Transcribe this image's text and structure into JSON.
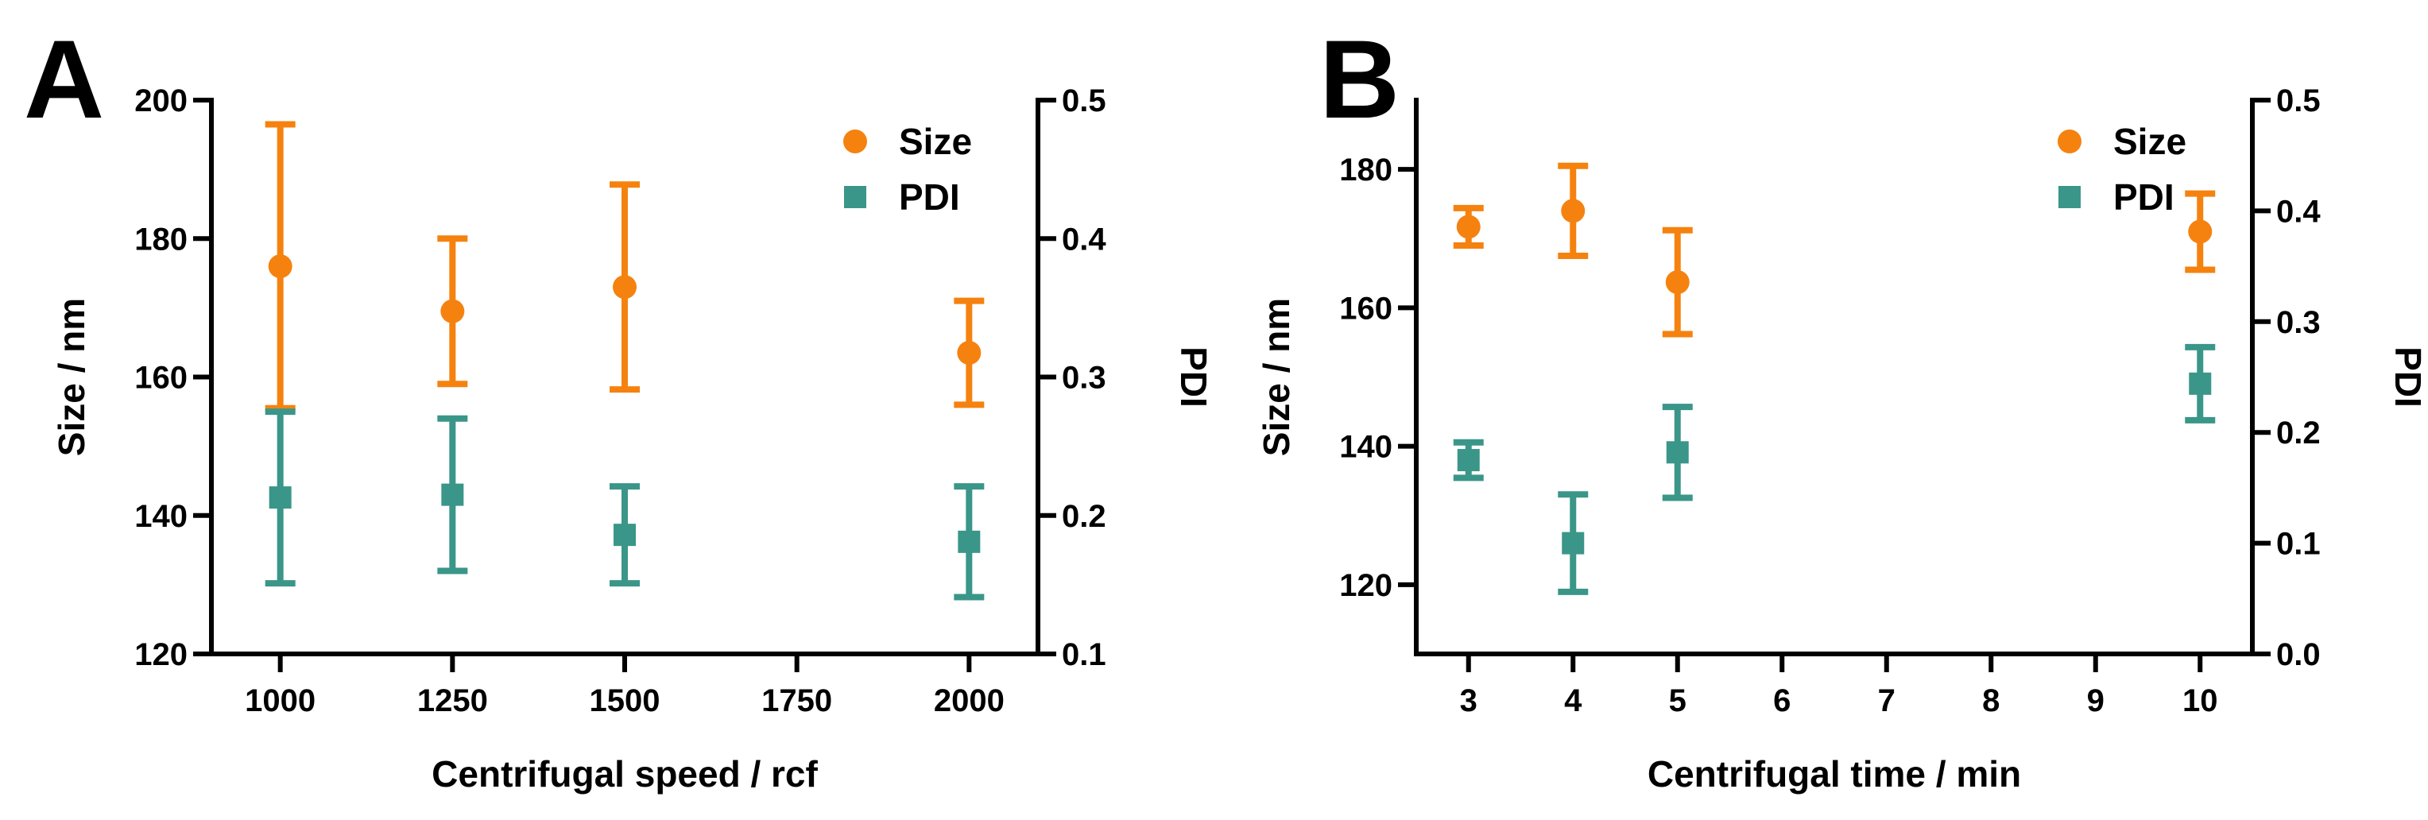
{
  "chart_data": [
    {
      "type": "scatter",
      "panel": "A",
      "xlabel": "Centrifugal speed / rcf",
      "ylabel": "Size / nm",
      "y2label": "PDI",
      "xlim": [
        900,
        2100
      ],
      "ylim": [
        120,
        200
      ],
      "y2lim": [
        0.1,
        0.5
      ],
      "xticks": [
        1000,
        1250,
        1500,
        1750,
        2000
      ],
      "yticks": [
        120,
        140,
        160,
        180,
        200
      ],
      "y2ticks": [
        "0.1",
        "0.2",
        "0.3",
        "0.4",
        "0.5"
      ],
      "legend": {
        "position": "top-right",
        "entries": [
          "Size",
          "PDI"
        ]
      },
      "series": [
        {
          "name": "Size",
          "axis": "left",
          "marker": "circle",
          "color": "#f5820f",
          "x": [
            1000,
            1250,
            1500,
            2000
          ],
          "y": [
            176,
            169.5,
            173,
            163.5
          ],
          "err": [
            20.5,
            10.5,
            14.8,
            7.5
          ]
        },
        {
          "name": "PDI",
          "axis": "right",
          "marker": "square",
          "color": "#3a9688",
          "x": [
            1000,
            1250,
            1500,
            2000
          ],
          "y": [
            0.213,
            0.215,
            0.186,
            0.181
          ],
          "err": [
            0.062,
            0.055,
            0.035,
            0.04
          ]
        }
      ]
    },
    {
      "type": "scatter",
      "panel": "B",
      "xlabel": "Centrifugal time / min",
      "ylabel": "Size / nm",
      "y2label": "PDI",
      "xlim": [
        2.5,
        10.5
      ],
      "ylim": [
        110,
        190
      ],
      "y2lim": [
        0.0,
        0.5
      ],
      "xticks": [
        3,
        4,
        5,
        6,
        7,
        8,
        9,
        10
      ],
      "yticks": [
        120,
        140,
        160,
        180
      ],
      "y2ticks": [
        "0.0",
        "0.1",
        "0.2",
        "0.3",
        "0.4",
        "0.5"
      ],
      "legend": {
        "position": "top-right",
        "entries": [
          "Size",
          "PDI"
        ]
      },
      "series": [
        {
          "name": "Size",
          "axis": "left",
          "marker": "circle",
          "color": "#f5820f",
          "x": [
            3,
            4,
            5,
            10
          ],
          "y": [
            171.7,
            174,
            163.7,
            171
          ],
          "err": [
            2.7,
            6.5,
            7.5,
            5.5
          ]
        },
        {
          "name": "PDI",
          "axis": "right",
          "marker": "square",
          "color": "#3a9688",
          "x": [
            3,
            4,
            5,
            10
          ],
          "y": [
            0.175,
            0.1,
            0.182,
            0.244
          ],
          "err": [
            0.016,
            0.044,
            0.041,
            0.033
          ]
        }
      ]
    }
  ]
}
